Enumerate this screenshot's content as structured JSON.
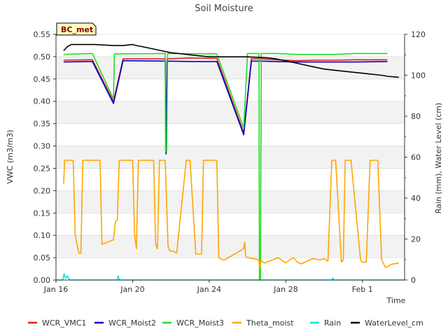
{
  "chart_data": {
    "type": "line",
    "title": "Soil Moisture",
    "badge": "BC_met",
    "xlabel": "Time",
    "ylabel_left": "VWC (m3/m3)",
    "ylabel_right": "Rain (mm), Water Level (cm)",
    "xlim": [
      16,
      34.2
    ],
    "ylim_left": [
      0,
      0.55
    ],
    "ylim_right": [
      0,
      120
    ],
    "xticks": [
      {
        "x": 16,
        "label": "Jan 16"
      },
      {
        "x": 20,
        "label": "Jan 20"
      },
      {
        "x": 24,
        "label": "Jan 24"
      },
      {
        "x": 28,
        "label": "Jan 28"
      },
      {
        "x": 32,
        "label": "Feb 1"
      }
    ],
    "yticks_left": [
      "0.00",
      "0.05",
      "0.10",
      "0.15",
      "0.20",
      "0.25",
      "0.30",
      "0.35",
      "0.40",
      "0.45",
      "0.50",
      "0.55"
    ],
    "yticks_right": [
      "0",
      "20",
      "40",
      "60",
      "80",
      "100",
      "120"
    ],
    "series": [
      {
        "name": "WCR_VMC1",
        "axis": "left",
        "color": "#e41a1c",
        "x": [
          16.4,
          17.9,
          19.0,
          19.5,
          21.7,
          21.75,
          21.8,
          23.0,
          24.4,
          25.8,
          26.2,
          26.65,
          27.5,
          28.5,
          29.6,
          30.6,
          31.6,
          33.3
        ],
        "y": [
          0.492,
          0.493,
          0.4,
          0.495,
          0.495,
          0.288,
          0.495,
          0.497,
          0.496,
          0.33,
          0.495,
          0.495,
          0.493,
          0.491,
          0.492,
          0.492,
          0.493,
          0.493
        ]
      },
      {
        "name": "WCR_Moist2",
        "axis": "left",
        "color": "#0000cc",
        "x": [
          16.4,
          17.9,
          19.0,
          19.5,
          21.7,
          21.75,
          21.8,
          23.0,
          24.4,
          25.8,
          26.2,
          26.65,
          27.5,
          28.5,
          29.6,
          30.6,
          31.6,
          33.3
        ],
        "y": [
          0.488,
          0.489,
          0.395,
          0.491,
          0.49,
          0.282,
          0.49,
          0.489,
          0.489,
          0.325,
          0.49,
          0.49,
          0.489,
          0.488,
          0.488,
          0.488,
          0.488,
          0.489
        ]
      },
      {
        "name": "WCR_Moist3",
        "axis": "left",
        "color": "#22dd22",
        "x": [
          16.4,
          17.9,
          19.0,
          19.05,
          21.7,
          21.72,
          21.78,
          21.83,
          24.4,
          25.8,
          26.0,
          26.6,
          26.62,
          26.67,
          26.72,
          27.5,
          28.5,
          29.6,
          30.6,
          31.6,
          33.3
        ],
        "y": [
          0.505,
          0.507,
          0.405,
          0.506,
          0.507,
          0.29,
          0.29,
          0.507,
          0.506,
          0.34,
          0.507,
          0.507,
          0.0,
          0.0,
          0.507,
          0.507,
          0.505,
          0.505,
          0.505,
          0.507,
          0.507
        ]
      },
      {
        "name": "Theta_moist",
        "axis": "left",
        "color": "#ffa500",
        "x": [
          16.4,
          16.45,
          16.5,
          16.9,
          17.0,
          17.2,
          17.3,
          17.4,
          17.6,
          18.3,
          18.4,
          19.0,
          19.1,
          19.2,
          19.3,
          19.4,
          20.0,
          20.1,
          20.2,
          20.3,
          20.4,
          20.5,
          21.1,
          21.2,
          21.3,
          21.4,
          21.5,
          21.55,
          21.6,
          21.7,
          21.85,
          21.95,
          22.1,
          22.3,
          22.8,
          22.9,
          23.0,
          23.3,
          23.6,
          23.7,
          23.8,
          23.9,
          24.4,
          24.5,
          24.6,
          24.7,
          24.8,
          25.8,
          25.85,
          25.9,
          25.95,
          26.0,
          26.3,
          26.6,
          26.62,
          26.65,
          26.7,
          26.8,
          26.9,
          27.0,
          27.3,
          27.6,
          28.0,
          28.2,
          28.4,
          28.6,
          28.8,
          29.0,
          29.4,
          29.8,
          30.0,
          30.2,
          30.4,
          30.5,
          30.6,
          30.9,
          31.0,
          31.1,
          31.2,
          31.3,
          31.4,
          31.9,
          32.0,
          32.2,
          32.4,
          32.5,
          32.8,
          33.0,
          33.2,
          33.3,
          33.5,
          33.9
        ],
        "y": [
          0.215,
          0.268,
          0.268,
          0.268,
          0.1,
          0.06,
          0.06,
          0.268,
          0.268,
          0.268,
          0.08,
          0.09,
          0.13,
          0.135,
          0.268,
          0.268,
          0.268,
          0.1,
          0.07,
          0.268,
          0.268,
          0.268,
          0.268,
          0.08,
          0.07,
          0.268,
          0.268,
          0.268,
          0.268,
          0.268,
          0.075,
          0.065,
          0.065,
          0.06,
          0.268,
          0.268,
          0.268,
          0.058,
          0.058,
          0.268,
          0.268,
          0.268,
          0.268,
          0.05,
          0.048,
          0.045,
          0.045,
          0.07,
          0.085,
          0.055,
          0.05,
          0.05,
          0.048,
          0.045,
          0.025,
          0.028,
          0.045,
          0.04,
          0.038,
          0.04,
          0.045,
          0.05,
          0.038,
          0.045,
          0.05,
          0.04,
          0.036,
          0.04,
          0.048,
          0.045,
          0.048,
          0.042,
          0.268,
          0.268,
          0.268,
          0.04,
          0.045,
          0.268,
          0.268,
          0.268,
          0.268,
          0.045,
          0.04,
          0.04,
          0.268,
          0.268,
          0.268,
          0.045,
          0.028,
          0.03,
          0.035,
          0.038
        ]
      },
      {
        "name": "Rain",
        "axis": "right",
        "color": "#00e5e5",
        "x": [
          16.0,
          16.35,
          16.42,
          16.5,
          16.6,
          16.7,
          19.2,
          19.25,
          19.3,
          19.4,
          30.4,
          30.45,
          30.5,
          34.2
        ],
        "y": [
          0,
          0,
          3,
          1,
          2,
          0,
          0,
          2,
          0,
          0,
          0,
          1,
          0,
          0
        ]
      },
      {
        "name": "WaterLevel_cm",
        "axis": "right",
        "color": "#000000",
        "x": [
          16.4,
          16.5,
          16.6,
          16.8,
          17.0,
          17.5,
          18.0,
          19.0,
          19.5,
          20.0,
          20.2,
          20.5,
          21.0,
          21.5,
          22.0,
          23.0,
          24.0,
          25.0,
          26.0,
          27.0,
          27.5,
          28.0,
          28.5,
          29.0,
          29.5,
          30.0,
          31.0,
          32.0,
          33.0,
          33.3,
          33.9
        ],
        "y": [
          112,
          113,
          114,
          115,
          115,
          115,
          115,
          114.5,
          114.5,
          115,
          114.5,
          114,
          113,
          112,
          111,
          110,
          109,
          109,
          109,
          108.5,
          108,
          107,
          106,
          105,
          104,
          103,
          102,
          101,
          100,
          99.5,
          99
        ]
      }
    ]
  }
}
